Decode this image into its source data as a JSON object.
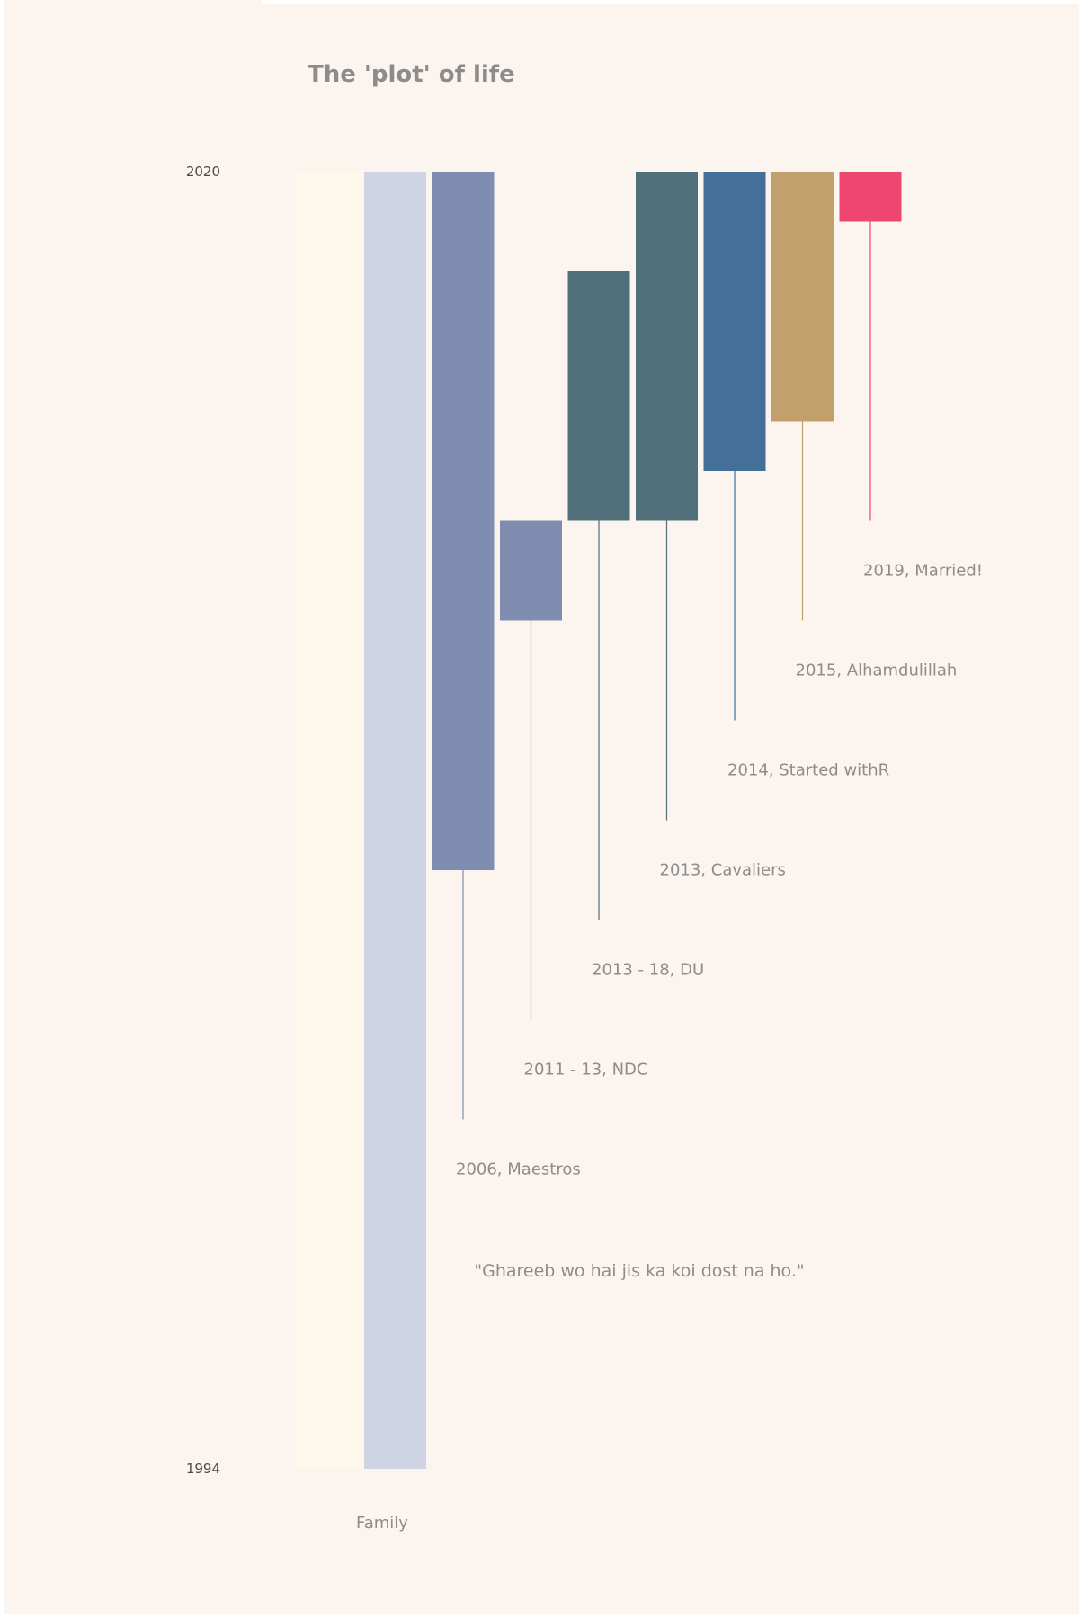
{
  "chart_data": {
    "type": "bar",
    "title": "The 'plot' of life",
    "caption": "\"Ghareeb wo hai jis ka koi dost na ho.\"",
    "category_label": "Family",
    "yaxis": {
      "min": 1994,
      "max": 2020,
      "ticks": [
        1994,
        2020
      ]
    },
    "bars": [
      {
        "name": "family",
        "start": 1994,
        "end": 2020,
        "color": "#ced4e3"
      },
      {
        "name": "maestros",
        "start": 2006,
        "end": 2020,
        "color": "#7e8db0",
        "label": "2006, Maestros",
        "label_value": 2001
      },
      {
        "name": "ndc",
        "start": 2011,
        "end": 2013,
        "color": "#7e8db0",
        "label": "2011 - 13, NDC",
        "label_value": 2003
      },
      {
        "name": "du",
        "start": 2013,
        "end": 2018,
        "color": "#506f7a",
        "label": "2013 - 18, DU",
        "label_value": 2005
      },
      {
        "name": "cavaliers",
        "start": 2013,
        "end": 2020,
        "color": "#506f7a",
        "label": "2013, Cavaliers",
        "label_value": 2007
      },
      {
        "name": "started-with-r",
        "start": 2014,
        "end": 2020,
        "color": "#436f99",
        "label": "2014, Started withR",
        "label_value": 2009
      },
      {
        "name": "alhamdulillah",
        "start": 2015,
        "end": 2020,
        "color": "#c2a06c",
        "label": "2015, Alhamdulillah",
        "label_value": 2011
      },
      {
        "name": "married",
        "start": 2019,
        "end": 2020,
        "color": "#ee476f",
        "label": "2019, Married!",
        "label_value": 2013
      }
    ],
    "grid": false,
    "legend": "none"
  },
  "colors": {
    "background": "#fcf5ef",
    "text": "#8c8c8c",
    "axis_text": "#4a4a4a",
    "highlight_band": "#fdf7ec"
  }
}
